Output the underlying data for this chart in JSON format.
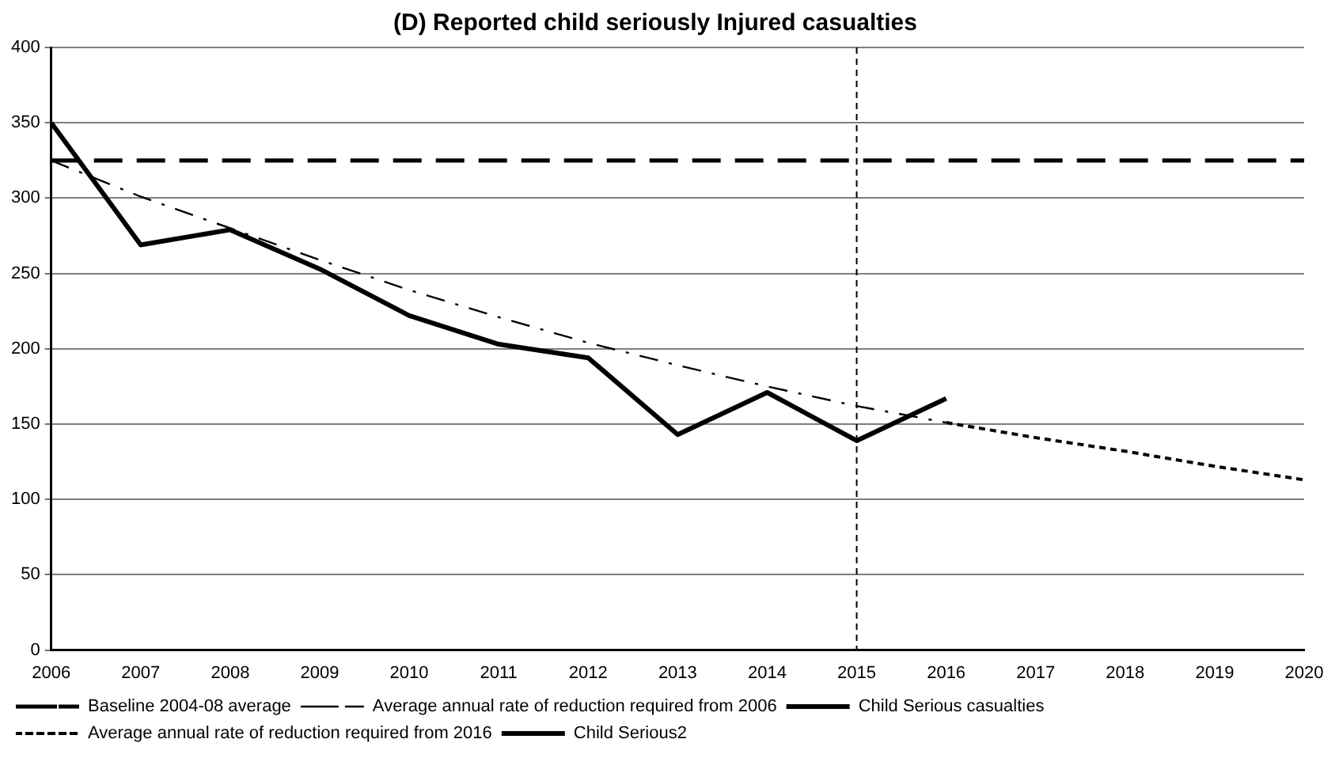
{
  "chart_data": {
    "type": "line",
    "title": "(D) Reported child seriously Injured casualties",
    "xlim": [
      2006,
      2020
    ],
    "xticks": [
      2006,
      2007,
      2008,
      2009,
      2010,
      2011,
      2012,
      2013,
      2014,
      2015,
      2016,
      2017,
      2018,
      2019,
      2020
    ],
    "ylim": [
      0,
      400
    ],
    "yticks": [
      0,
      50,
      100,
      150,
      200,
      250,
      300,
      350,
      400
    ],
    "grid": "y",
    "legend": "bottom",
    "marker": "none",
    "series": [
      {
        "name": "Baseline 2004-08 average",
        "color": "#000000",
        "line_style": "dashed",
        "x": [
          2006,
          2020
        ],
        "values": [
          325,
          325
        ]
      },
      {
        "name": "Average annual rate of reduction required from 2006",
        "color": "#000000",
        "line_style": "dashdot",
        "x": [
          2006,
          2007,
          2008,
          2009,
          2010,
          2011,
          2012,
          2013,
          2014,
          2015,
          2016
        ],
        "values": [
          325,
          301,
          280,
          259,
          239,
          221,
          204,
          189,
          175,
          162,
          151
        ]
      },
      {
        "name": "Child Serious casualties",
        "color": "#000000",
        "line_style": "solid",
        "x": [
          2006,
          2007,
          2008,
          2009,
          2010,
          2011,
          2012,
          2013,
          2014,
          2015,
          2016
        ],
        "values": [
          350,
          269,
          279,
          253,
          222,
          203,
          194,
          143,
          171,
          139,
          167
        ]
      },
      {
        "name": "Average annual rate of reduction required from 2016",
        "color": "#000000",
        "line_style": "dotted",
        "x": [
          2016,
          2017,
          2018,
          2019,
          2020
        ],
        "values": [
          151,
          141,
          132,
          122,
          113
        ]
      },
      {
        "name": "Child Serious2",
        "color": "#000000",
        "line_style": "solid"
      }
    ],
    "ref_lines": [
      {
        "axis": "x",
        "value": 2015,
        "line_style": "dotted",
        "color": "#000000"
      }
    ]
  }
}
